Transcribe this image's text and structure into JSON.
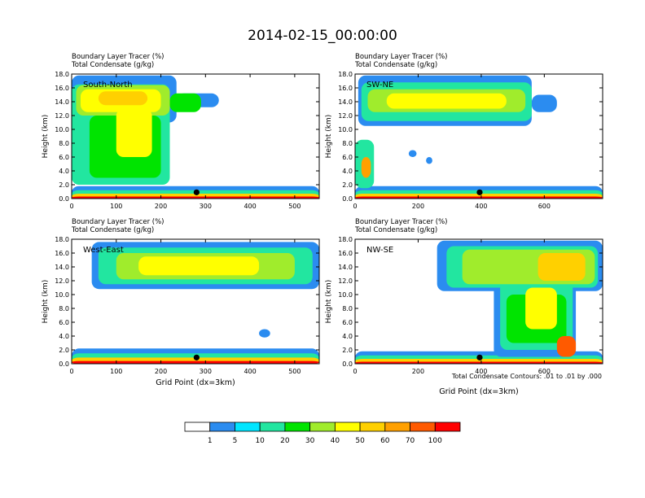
{
  "main_title": "2014-02-15_00:00:00",
  "colorbar": {
    "labels": [
      "1",
      "5",
      "10",
      "20",
      "30",
      "40",
      "50",
      "60",
      "70",
      "100"
    ],
    "colors": [
      "#ffffff",
      "#2b8cf0",
      "#00e5ff",
      "#22e6a0",
      "#00e400",
      "#a0ec2c",
      "#ffff00",
      "#ffd000",
      "#ffa000",
      "#ff5a00",
      "#ff0000"
    ]
  },
  "footer_note": "Total Condensate Contours: .01 to .01 by .000",
  "chart_data": [
    {
      "type": "heatmap",
      "id": "south-north",
      "label": "South-North",
      "title_line1": "Boundary Layer Tracer   (%)",
      "title_line2": "Total Condensate   (g/kg)",
      "ylabel": "Height (km)",
      "xlabel": "",
      "xlim": [
        0,
        555
      ],
      "ylim": [
        0,
        18
      ],
      "xticks": [
        0,
        100,
        200,
        300,
        400,
        500
      ],
      "yticks": [
        0,
        2,
        4,
        6,
        8,
        10,
        12,
        14,
        16,
        18
      ],
      "ytick_labels": [
        "0.0",
        "2.0",
        "4.0",
        "6.0",
        "8.0",
        "10.0",
        "12.0",
        "14.0",
        "16.0",
        "18.0"
      ],
      "marker_x": 280,
      "features": [
        {
          "x0": 0,
          "x1": 555,
          "y0": 0,
          "y1": 1.8,
          "level": 1
        },
        {
          "x0": 0,
          "x1": 555,
          "y0": 0,
          "y1": 1.2,
          "level": 3
        },
        {
          "x0": 0,
          "x1": 555,
          "y0": 0,
          "y1": 0.7,
          "level": 7
        },
        {
          "x0": 0,
          "x1": 555,
          "y0": 0,
          "y1": 0.3,
          "level": 10
        },
        {
          "x0": 0,
          "x1": 235,
          "y0": 11,
          "y1": 17.8,
          "level": 1
        },
        {
          "x0": 235,
          "x1": 330,
          "y0": 13.2,
          "y1": 15.2,
          "level": 1
        },
        {
          "x0": 0,
          "x1": 220,
          "y0": 2,
          "y1": 16.5,
          "level": 3
        },
        {
          "x0": 10,
          "x1": 220,
          "y0": 12,
          "y1": 16.4,
          "level": 5
        },
        {
          "x0": 220,
          "x1": 290,
          "y0": 12.5,
          "y1": 15.2,
          "level": 4
        },
        {
          "x0": 40,
          "x1": 200,
          "y0": 3,
          "y1": 12,
          "level": 4
        },
        {
          "x0": 20,
          "x1": 200,
          "y0": 12.5,
          "y1": 15.8,
          "level": 6
        },
        {
          "x0": 100,
          "x1": 180,
          "y0": 6,
          "y1": 13,
          "level": 6
        },
        {
          "x0": 60,
          "x1": 170,
          "y0": 13.5,
          "y1": 15.5,
          "level": 7
        }
      ]
    },
    {
      "type": "heatmap",
      "id": "sw-ne",
      "label": "SW-NE",
      "title_line1": "Boundary Layer Tracer   (%)",
      "title_line2": "Total Condensate   (g/kg)",
      "ylabel": "Height (km)",
      "xlabel": "",
      "xlim": [
        0,
        785
      ],
      "ylim": [
        0,
        18
      ],
      "xticks": [
        0,
        200,
        400,
        600
      ],
      "yticks": [
        0,
        2,
        4,
        6,
        8,
        10,
        12,
        14,
        16,
        18
      ],
      "ytick_labels": [
        "0.0",
        "2.0",
        "4.0",
        "6.0",
        "8.0",
        "10.0",
        "12.0",
        "14.0",
        "16.0",
        "18.0"
      ],
      "marker_x": 395,
      "features": [
        {
          "x0": 0,
          "x1": 785,
          "y0": 0,
          "y1": 1.8,
          "level": 1
        },
        {
          "x0": 0,
          "x1": 785,
          "y0": 0,
          "y1": 1.2,
          "level": 3
        },
        {
          "x0": 0,
          "x1": 785,
          "y0": 0,
          "y1": 0.7,
          "level": 7
        },
        {
          "x0": 0,
          "x1": 785,
          "y0": 0,
          "y1": 0.3,
          "level": 10
        },
        {
          "x0": 0,
          "x1": 60,
          "y0": 1.5,
          "y1": 8.5,
          "level": 3
        },
        {
          "x0": 20,
          "x1": 50,
          "y0": 3,
          "y1": 6,
          "level": 8
        },
        {
          "x0": 10,
          "x1": 560,
          "y0": 10.5,
          "y1": 17.8,
          "level": 1
        },
        {
          "x0": 560,
          "x1": 640,
          "y0": 12.5,
          "y1": 15,
          "level": 1
        },
        {
          "x0": 20,
          "x1": 560,
          "y0": 11.2,
          "y1": 16.8,
          "level": 3
        },
        {
          "x0": 40,
          "x1": 540,
          "y0": 12.5,
          "y1": 15.8,
          "level": 5
        },
        {
          "x0": 100,
          "x1": 480,
          "y0": 13,
          "y1": 15.2,
          "level": 6
        },
        {
          "x0": 170,
          "x1": 195,
          "y0": 6,
          "y1": 7,
          "level": 1
        },
        {
          "x0": 225,
          "x1": 245,
          "y0": 5,
          "y1": 6,
          "level": 1
        }
      ]
    },
    {
      "type": "heatmap",
      "id": "west-east",
      "label": "West-East",
      "title_line1": "Boundary Layer Tracer   (%)",
      "title_line2": "Total Condensate   (g/kg)",
      "ylabel": "Height (km)",
      "xlabel": "Grid Point (dx=3km)",
      "xlim": [
        0,
        555
      ],
      "ylim": [
        0,
        18
      ],
      "xticks": [
        0,
        100,
        200,
        300,
        400,
        500
      ],
      "yticks": [
        0,
        2,
        4,
        6,
        8,
        10,
        12,
        14,
        16,
        18
      ],
      "ytick_labels": [
        "0.0",
        "2.0",
        "4.0",
        "6.0",
        "8.0",
        "10.0",
        "12.0",
        "14.0",
        "16.0",
        "18.0"
      ],
      "marker_x": 280,
      "features": [
        {
          "x0": 0,
          "x1": 555,
          "y0": 0,
          "y1": 2.2,
          "level": 1
        },
        {
          "x0": 0,
          "x1": 555,
          "y0": 0,
          "y1": 1.5,
          "level": 3
        },
        {
          "x0": 0,
          "x1": 555,
          "y0": 0,
          "y1": 0.9,
          "level": 7
        },
        {
          "x0": 0,
          "x1": 555,
          "y0": 0,
          "y1": 0.4,
          "level": 10
        },
        {
          "x0": 45,
          "x1": 555,
          "y0": 10.8,
          "y1": 17.6,
          "level": 1
        },
        {
          "x0": 60,
          "x1": 540,
          "y0": 11.5,
          "y1": 16.8,
          "level": 3
        },
        {
          "x0": 100,
          "x1": 500,
          "y0": 12.2,
          "y1": 16,
          "level": 5
        },
        {
          "x0": 150,
          "x1": 420,
          "y0": 12.8,
          "y1": 15.5,
          "level": 6
        },
        {
          "x0": 420,
          "x1": 445,
          "y0": 3.8,
          "y1": 5,
          "level": 1
        }
      ]
    },
    {
      "type": "heatmap",
      "id": "nw-se",
      "label": "NW-SE",
      "title_line1": "Boundary Layer Tracer   (%)",
      "title_line2": "Total Condensate   (g/kg)",
      "ylabel": "Height (km)",
      "xlabel": "Grid Point (dx=3km)",
      "xlim": [
        0,
        785
      ],
      "ylim": [
        0,
        18
      ],
      "xticks": [
        0,
        200,
        400,
        600
      ],
      "yticks": [
        0,
        2,
        4,
        6,
        8,
        10,
        12,
        14,
        16,
        18
      ],
      "ytick_labels": [
        "0.0",
        "2.0",
        "4.0",
        "6.0",
        "8.0",
        "10.0",
        "12.0",
        "14.0",
        "16.0",
        "18.0"
      ],
      "marker_x": 395,
      "features": [
        {
          "x0": 0,
          "x1": 785,
          "y0": 0,
          "y1": 1.8,
          "level": 1
        },
        {
          "x0": 0,
          "x1": 785,
          "y0": 0,
          "y1": 1.2,
          "level": 3
        },
        {
          "x0": 0,
          "x1": 785,
          "y0": 0,
          "y1": 0.7,
          "level": 7
        },
        {
          "x0": 0,
          "x1": 785,
          "y0": 0,
          "y1": 0.3,
          "level": 10
        },
        {
          "x0": 260,
          "x1": 785,
          "y0": 10.5,
          "y1": 17.8,
          "level": 1
        },
        {
          "x0": 440,
          "x1": 700,
          "y0": 1,
          "y1": 13,
          "level": 1
        },
        {
          "x0": 290,
          "x1": 770,
          "y0": 11,
          "y1": 17,
          "level": 3
        },
        {
          "x0": 460,
          "x1": 690,
          "y0": 2,
          "y1": 12,
          "level": 3
        },
        {
          "x0": 340,
          "x1": 760,
          "y0": 11.5,
          "y1": 16.5,
          "level": 5
        },
        {
          "x0": 480,
          "x1": 670,
          "y0": 3,
          "y1": 10,
          "level": 4
        },
        {
          "x0": 580,
          "x1": 730,
          "y0": 12,
          "y1": 16,
          "level": 7
        },
        {
          "x0": 540,
          "x1": 640,
          "y0": 5,
          "y1": 11,
          "level": 6
        },
        {
          "x0": 640,
          "x1": 700,
          "y0": 1,
          "y1": 4,
          "level": 9
        }
      ]
    }
  ]
}
